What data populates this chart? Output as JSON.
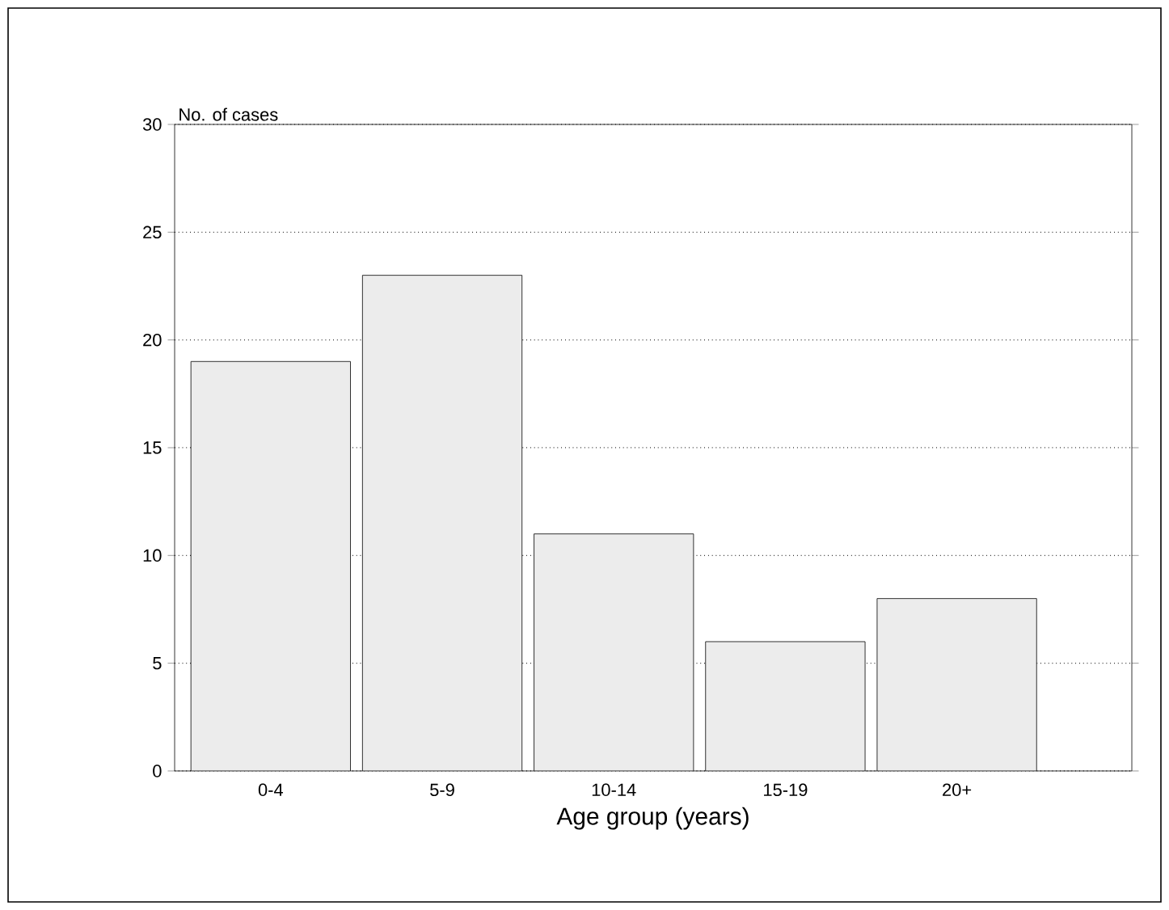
{
  "chart_data": {
    "type": "bar",
    "ylabel": "No. of cases",
    "xlabel": "Age group (years)",
    "categories": [
      "0-4",
      "5-9",
      "10-14",
      "15-19",
      "20+"
    ],
    "values": [
      19,
      23,
      11,
      6,
      8
    ],
    "color": "#ececec",
    "ylim": [
      0,
      30
    ],
    "yticks": [
      0,
      5,
      10,
      15,
      20,
      25,
      30
    ],
    "grid": "y"
  }
}
